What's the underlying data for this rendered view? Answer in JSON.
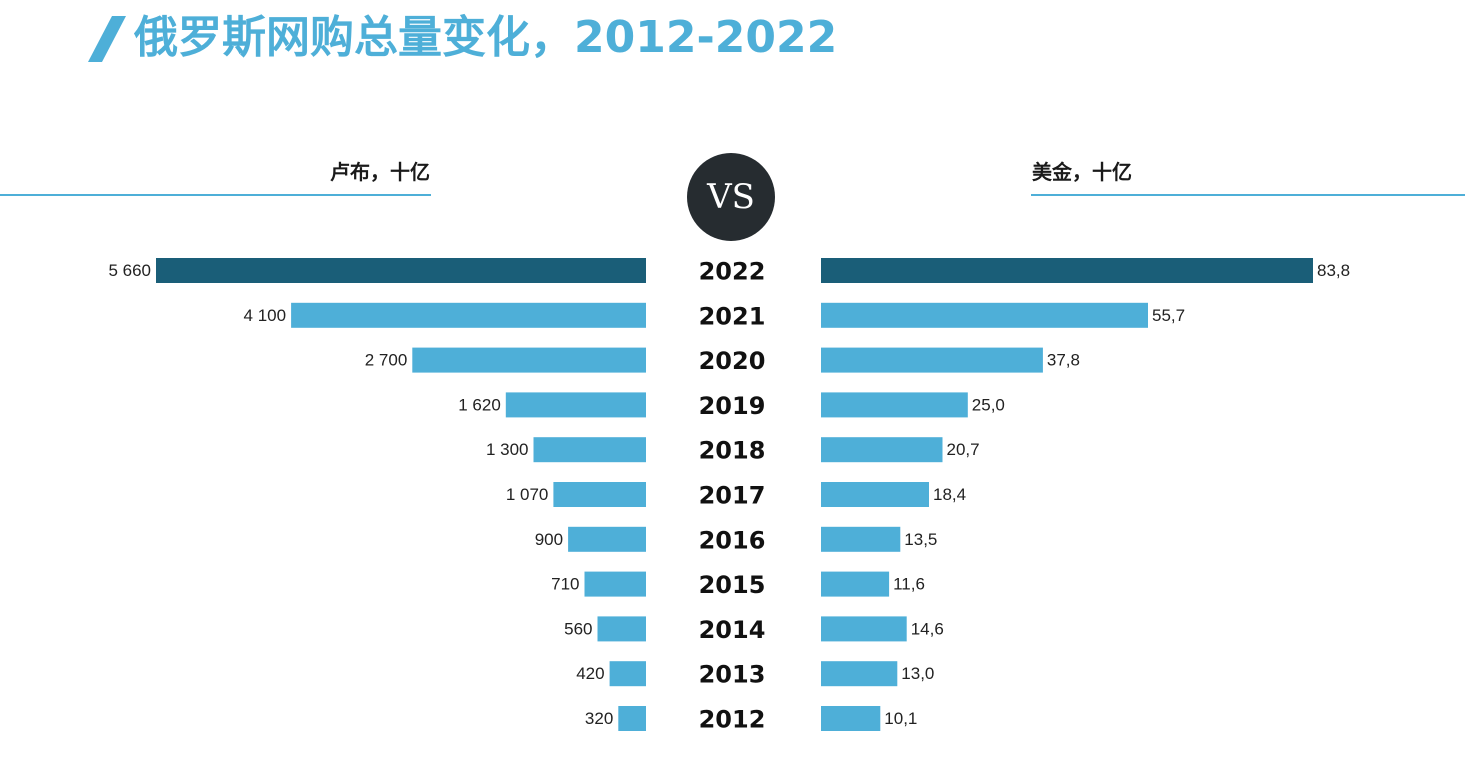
{
  "title": "俄罗斯网购总量变化，2012-2022",
  "left_unit": "卢布，十亿",
  "right_unit": "美金，十亿",
  "vs_label": "VS",
  "colors": {
    "title": "#4eafd8",
    "bar": "#4eafd8",
    "bar_highlight": "#1a5e78",
    "vs_circle": "#262c30"
  },
  "chart_data": {
    "type": "bar",
    "categories": [
      "2022",
      "2021",
      "2020",
      "2019",
      "2018",
      "2017",
      "2016",
      "2015",
      "2014",
      "2013",
      "2012"
    ],
    "series": [
      {
        "name": "卢布，十亿",
        "values": [
          5660,
          4100,
          2700,
          1620,
          1300,
          1070,
          900,
          710,
          560,
          420,
          320
        ],
        "labels": [
          "5 660",
          "4 100",
          "2 700",
          "1 620",
          "1 300",
          "1 070",
          "900",
          "710",
          "560",
          "420",
          "320"
        ]
      },
      {
        "name": "美金，十亿",
        "values": [
          83.8,
          55.7,
          37.8,
          25.0,
          20.7,
          18.4,
          13.5,
          11.6,
          14.6,
          13.0,
          10.1
        ],
        "labels": [
          "83,8",
          "55,7",
          "37,8",
          "25,0",
          "20,7",
          "18,4",
          "13,5",
          "11,6",
          "14,6",
          "13,0",
          "10,1"
        ]
      }
    ],
    "highlight_category": "2022",
    "xlim_left": [
      0,
      5660
    ],
    "xlim_right": [
      0,
      83.8
    ],
    "grid": false
  }
}
